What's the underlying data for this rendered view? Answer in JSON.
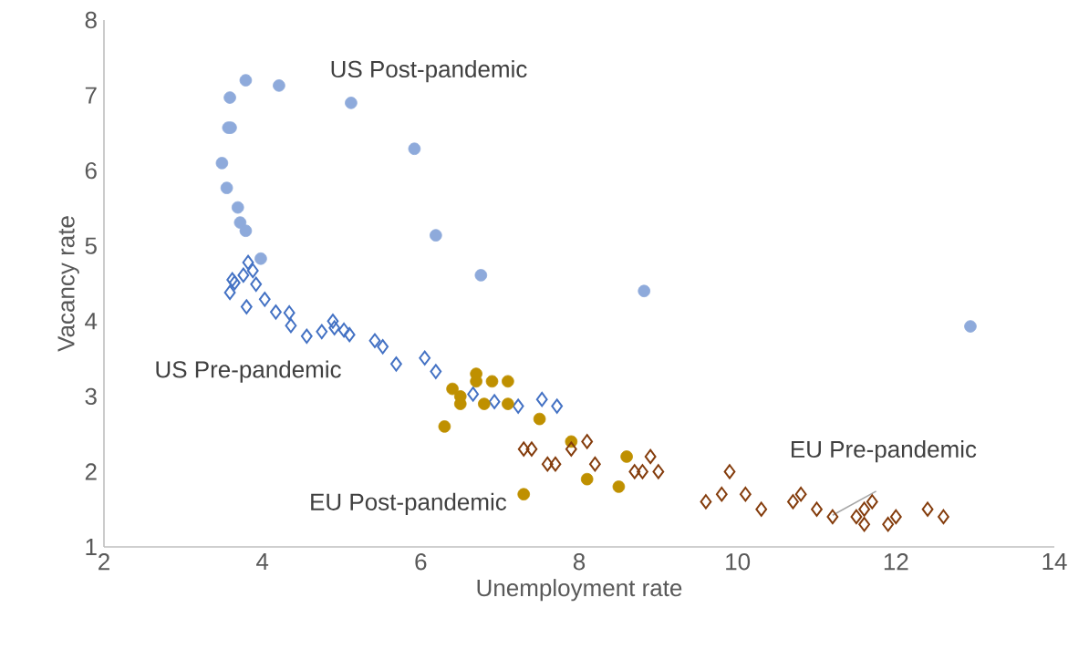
{
  "chart_data": {
    "type": "scatter",
    "xlabel": "Unemployment rate",
    "ylabel": "Vacancy rate",
    "xlim": [
      2,
      14
    ],
    "xticks": [
      2,
      4,
      6,
      8,
      10,
      12,
      14
    ],
    "ylim": [
      1,
      8
    ],
    "yticks": [
      1,
      2,
      3,
      4,
      5,
      6,
      7,
      8
    ],
    "grid": false,
    "legend": false,
    "series": [
      {
        "name": "US  Post-pandemic",
        "color": "#8eaadb",
        "marker": "circle",
        "x": [
          3.79,
          4.21,
          3.59,
          3.57,
          3.6,
          3.49,
          3.55,
          3.69,
          3.72,
          3.79,
          3.98,
          5.12,
          5.92,
          6.19,
          6.76,
          8.82,
          12.94
        ],
        "values": [
          7.2,
          7.13,
          6.97,
          6.57,
          6.57,
          6.1,
          5.77,
          5.51,
          5.31,
          5.2,
          4.83,
          6.9,
          6.29,
          5.14,
          4.61,
          4.4,
          3.93
        ]
      },
      {
        "name": "US Pre-pandemic",
        "color": "#4472c4",
        "marker": "diamond",
        "x": [
          3.59,
          3.62,
          3.65,
          3.76,
          3.82,
          3.88,
          3.92,
          3.8,
          4.03,
          4.17,
          4.34,
          4.36,
          4.56,
          4.75,
          4.89,
          4.91,
          5.03,
          5.1,
          5.42,
          5.52,
          5.69,
          6.05,
          6.19,
          6.66,
          6.93,
          7.23,
          7.53,
          7.72
        ],
        "values": [
          4.38,
          4.55,
          4.51,
          4.61,
          4.78,
          4.67,
          4.49,
          4.19,
          4.29,
          4.12,
          4.11,
          3.94,
          3.8,
          3.86,
          4.0,
          3.91,
          3.88,
          3.82,
          3.74,
          3.66,
          3.43,
          3.51,
          3.33,
          3.03,
          2.93,
          2.87,
          2.96,
          2.87
        ]
      },
      {
        "name": "EU Post-pandemic",
        "color": "#bf9000",
        "marker": "circle",
        "x": [
          6.7,
          6.7,
          6.4,
          6.5,
          6.5,
          6.9,
          7.1,
          6.8,
          7.1,
          6.3,
          7.5,
          7.9,
          8.6,
          8.1,
          8.5,
          7.3
        ],
        "values": [
          3.3,
          3.2,
          3.1,
          3.0,
          2.9,
          3.2,
          3.2,
          2.9,
          2.9,
          2.6,
          2.7,
          2.4,
          2.2,
          1.9,
          1.8,
          1.7
        ]
      },
      {
        "name": "EU Pre-pandemic",
        "color": "#843c0c",
        "marker": "diamond",
        "x": [
          7.3,
          7.4,
          7.6,
          7.7,
          7.9,
          8.1,
          8.2,
          8.7,
          8.8,
          8.9,
          9.0,
          9.6,
          9.8,
          9.9,
          10.1,
          10.3,
          10.7,
          10.8,
          11.0,
          11.2,
          11.5,
          11.6,
          11.6,
          11.7,
          11.9,
          12.0,
          12.4,
          12.6
        ],
        "values": [
          2.3,
          2.3,
          2.1,
          2.1,
          2.3,
          2.4,
          2.1,
          2.0,
          2.0,
          2.2,
          2.0,
          1.6,
          1.7,
          2.0,
          1.7,
          1.5,
          1.6,
          1.7,
          1.5,
          1.4,
          1.4,
          1.3,
          1.5,
          1.6,
          1.3,
          1.4,
          1.5,
          1.4
        ]
      }
    ]
  }
}
